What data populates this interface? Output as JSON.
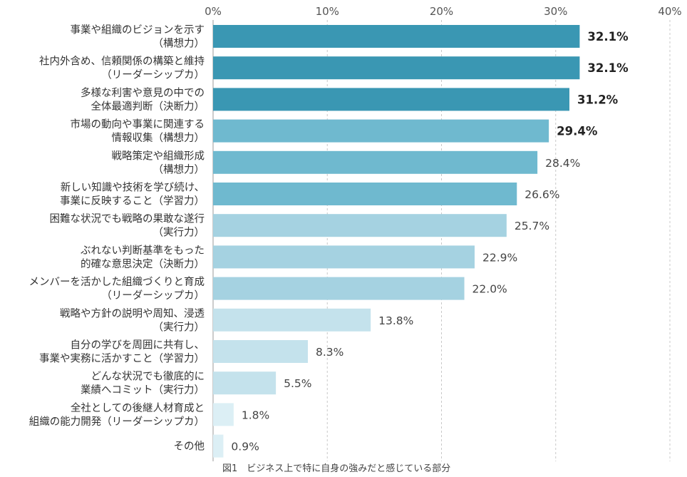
{
  "chart_data": {
    "type": "bar",
    "orientation": "horizontal",
    "title": "図1　ビジネス上で特に自身の強みだと感じている部分",
    "xlim": [
      0,
      40
    ],
    "x_ticks": [
      "0%",
      "10%",
      "20%",
      "30%",
      "40%"
    ],
    "x_tick_values": [
      0,
      10,
      20,
      30,
      40
    ],
    "grid": true,
    "categories": [
      [
        "事業や組織のビジョンを示す",
        "（構想力）"
      ],
      [
        "社内外含め、信頼関係の構築と維持",
        "（リーダーシップカ）"
      ],
      [
        "多様な利害や意見の中での",
        "全体最適判断（決断力）"
      ],
      [
        "市場の動向や事業に関連する",
        "情報収集（構想力）"
      ],
      [
        "戦略策定や組織形成",
        "（構想力）"
      ],
      [
        "新しい知識や技術を学び続け、",
        "事業に反映すること（学習力）"
      ],
      [
        "困難な状況でも戦略の果敢な遂行",
        "（実行力）"
      ],
      [
        "ぶれない判断基準をもった",
        "的確な意思決定（決断力）"
      ],
      [
        "メンバーを活かした組織づくりと育成",
        "（リーダーシップカ）"
      ],
      [
        "戦略や方針の説明や周知、浸透",
        "（実行力）"
      ],
      [
        "自分の学びを周囲に共有し、",
        "事業や実務に活かすこと（学習力）"
      ],
      [
        "どんな状況でも徹底的に",
        "業績へコミット（実行力）"
      ],
      [
        "全社としての後継人材育成と",
        "組織の能力開発（リーダーシップカ）"
      ],
      [
        "その他"
      ]
    ],
    "values": [
      32.1,
      32.1,
      31.2,
      29.4,
      28.4,
      26.6,
      25.7,
      22.9,
      22.0,
      13.8,
      8.3,
      5.5,
      1.8,
      0.9
    ],
    "value_labels": [
      "32.1%",
      "32.1%",
      "31.2%",
      "29.4%",
      "28.4%",
      "26.6%",
      "25.7%",
      "22.9%",
      "22.0%",
      "13.8%",
      "8.3%",
      "5.5%",
      "1.8%",
      "0.9%"
    ],
    "bold_labels": [
      true,
      true,
      true,
      true,
      false,
      false,
      false,
      false,
      false,
      false,
      false,
      false,
      false,
      false
    ],
    "colors": [
      "#3a97b3",
      "#3a97b3",
      "#3a97b3",
      "#6fb9cf",
      "#6fb9cf",
      "#6fb9cf",
      "#a5d2e1",
      "#a5d2e1",
      "#a5d2e1",
      "#c4e2ec",
      "#c4e2ec",
      "#c4e2ec",
      "#dceff5",
      "#dceff5"
    ]
  }
}
